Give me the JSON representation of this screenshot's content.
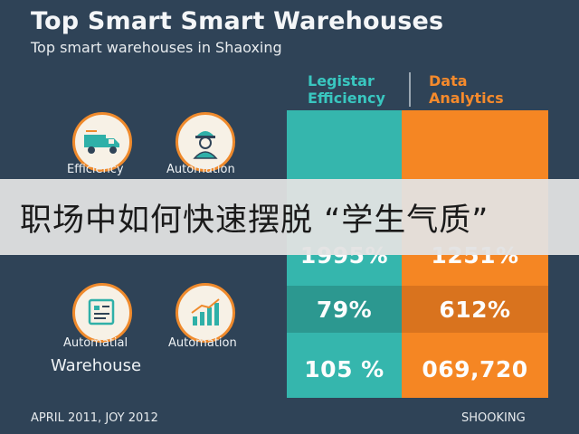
{
  "header": {
    "title": "Top Smart Smart Warehouses",
    "subtitle": "Top smart warehouses in Shaoxing"
  },
  "columns": {
    "left_label": "Legistar Efficiency",
    "right_label": "Data Analytics"
  },
  "icons": {
    "top_left": {
      "label": "Efficiency",
      "icon": "truck-icon"
    },
    "top_right": {
      "label": "Automation",
      "icon": "worker-icon"
    },
    "bottom_left": {
      "label": "Automatial",
      "icon": "document-icon"
    },
    "bottom_right": {
      "label": "Automation",
      "icon": "bar-chart-icon"
    }
  },
  "warehouse_label": "Warehouse",
  "rows": [
    {
      "left": "1995%",
      "right": "1251%"
    },
    {
      "left": "79%",
      "right": "612%"
    },
    {
      "left": "105 %",
      "right": "069,720"
    }
  ],
  "banner": {
    "text": "职场中如何快速摆脱 “学生气质”"
  },
  "footer": {
    "left": "APRIL 2011, JOY 2012",
    "right": "SHOOKING"
  },
  "colors": {
    "background": "#2f4357",
    "teal": "#35b6ad",
    "orange": "#f58623"
  }
}
